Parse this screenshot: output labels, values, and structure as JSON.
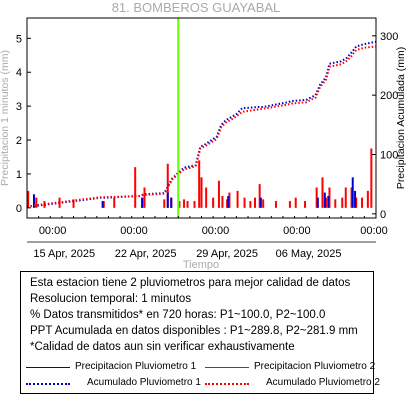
{
  "title": "81. BOMBEROS GUAYABAL",
  "chart_data": {
    "type": "bar",
    "title": "81. BOMBEROS GUAYABAL",
    "xlabel": "Tiempo",
    "ylabel_left": "Precipitacion 1 minutos (mm)",
    "ylabel_right": "Precipitacion Acumulada (mm)",
    "ylim_left": [
      -0.3,
      5.6
    ],
    "ylim_right": [
      -7,
      330
    ],
    "yticks_left": [
      0,
      1,
      2,
      3,
      4,
      5
    ],
    "yticks_right": [
      0,
      100,
      200,
      300
    ],
    "xlim_days": [
      0,
      30
    ],
    "x_tick_time_labels": [
      "00:00",
      "00:00",
      "00:00",
      "00:00",
      "00:00",
      "00:00"
    ],
    "x_date_labels": [
      "15 Apr, 2025",
      "22 Apr, 2025",
      "29 Apr, 2025",
      "06 May, 2025"
    ],
    "marker_line": {
      "label": "current time",
      "day": 13.0,
      "color": "#66ff00"
    },
    "series": [
      {
        "name": "Precipitacion Pluviometro 1",
        "axis": "left",
        "style": "bars",
        "color": "#0000cc",
        "x": [
          0.6,
          6.5,
          9.9,
          12.1,
          12.4,
          17.3,
          20.1,
          25.0,
          25.6,
          25.9,
          28.0,
          28.2
        ],
        "values": [
          0.4,
          0.2,
          0.3,
          0.45,
          0.3,
          0.35,
          0.3,
          0.3,
          0.45,
          0.35,
          0.9,
          0.5
        ]
      },
      {
        "name": "Precipitacion Pluviometro 2",
        "axis": "left",
        "style": "bars",
        "color": "#ff0000",
        "x": [
          0.1,
          0.8,
          1.5,
          2.8,
          4.0,
          6.6,
          7.5,
          9.3,
          9.9,
          10.1,
          11.8,
          12.1,
          12.4,
          13.1,
          13.5,
          13.8,
          14.4,
          14.8,
          15.0,
          15.4,
          16.0,
          16.5,
          16.8,
          17.2,
          17.4,
          18.1,
          18.7,
          19.2,
          19.6,
          20.0,
          20.3,
          21.4,
          22.6,
          23.1,
          23.9,
          24.9,
          25.4,
          25.7,
          26.0,
          26.5,
          27.1,
          27.4,
          27.9,
          28.3,
          28.8,
          29.3,
          29.6
        ],
        "values": [
          0.5,
          0.3,
          0.2,
          0.3,
          0.25,
          0.2,
          0.3,
          1.2,
          0.3,
          0.6,
          0.25,
          1.3,
          0.3,
          0.2,
          0.25,
          0.2,
          0.2,
          1.4,
          0.9,
          0.6,
          0.3,
          0.8,
          0.35,
          0.25,
          0.45,
          0.5,
          0.3,
          0.2,
          0.3,
          0.7,
          0.25,
          0.2,
          0.2,
          0.3,
          0.2,
          0.6,
          0.9,
          0.3,
          0.6,
          0.25,
          0.3,
          0.6,
          0.6,
          0.3,
          0.3,
          0.5,
          1.75
        ]
      },
      {
        "name": "Acumulado Pluviometro 1",
        "axis": "right",
        "style": "dotted",
        "color": "#0000cc",
        "x": [
          0,
          0.6,
          6.3,
          6.6,
          9.7,
          10.0,
          11.8,
          12.5,
          13.5,
          14.5,
          14.9,
          15.3,
          16.3,
          16.7,
          17.1,
          18.0,
          18.5,
          19.9,
          20.3,
          22.4,
          22.7,
          24.0,
          24.8,
          25.2,
          25.7,
          26.0,
          27.0,
          27.5,
          27.9,
          28.3,
          29.0,
          30.0
        ],
        "values": [
          13,
          13,
          27,
          27,
          30,
          33,
          35,
          60,
          78,
          82,
          113,
          117,
          130,
          150,
          158,
          168,
          178,
          180,
          180,
          188,
          190,
          192,
          200,
          218,
          230,
          253,
          257,
          263,
          272,
          282,
          286,
          290
        ]
      },
      {
        "name": "Acumulado Pluviometro 2",
        "axis": "right",
        "style": "dotted",
        "color": "#ff0000",
        "x": [
          0,
          0.6,
          6.3,
          6.6,
          9.7,
          10.0,
          11.8,
          12.5,
          13.5,
          14.5,
          14.9,
          15.3,
          16.3,
          16.7,
          17.1,
          18.0,
          18.5,
          19.9,
          20.3,
          22.4,
          22.7,
          24.0,
          24.8,
          25.2,
          25.7,
          26.0,
          27.0,
          27.5,
          27.9,
          28.3,
          29.0,
          30.0
        ],
        "values": [
          12,
          14,
          28,
          28,
          30,
          32,
          34,
          58,
          75,
          80,
          110,
          114,
          126,
          146,
          154,
          164,
          172,
          176,
          177,
          184,
          186,
          188,
          196,
          214,
          226,
          248,
          252,
          258,
          266,
          276,
          280,
          282
        ]
      }
    ]
  },
  "info": {
    "line1": "Esta estacion tiene 2 pluviometros para mejor calidad de datos",
    "line2": "Resolucion temporal: 1 minutos",
    "line3": "% Datos transmitidos* en 720 horas: P1~100.0, P2~100.0",
    "line4": "PPT Acumulada en datos disponibles : P1~289.8, P2~281.9 mm",
    "line5": "*Calidad de datos aun sin verificar exhaustivamente"
  },
  "legend": {
    "p1_label": "Precipitacion Pluviometro 1",
    "p2_label": "Precipitacion Pluviometro 2",
    "a1_label": "Acumulado Pluviometro 1",
    "a2_label": "Acumulado Pluviometro 2",
    "p1_color": "#0000cc",
    "p2_color": "#ff0000",
    "a1_color": "#0000cc",
    "a2_color": "#ff0000"
  }
}
